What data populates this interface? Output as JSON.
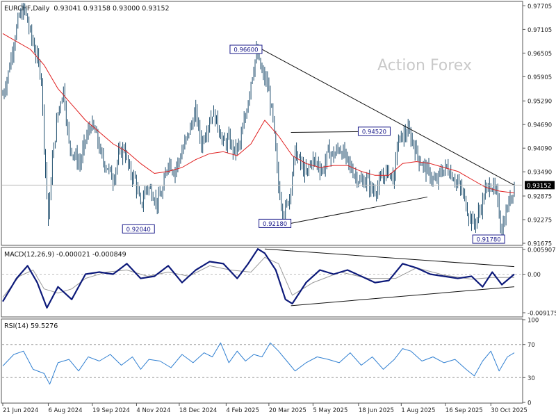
{
  "chart_data": {
    "type": "line",
    "instrument": "EURCHF,Daily",
    "ohlc": "0.93041 0.93158 0.93000 0.93152",
    "watermark": "Action Forex",
    "x_tick_labels": [
      "21 Jun 2024",
      "6 Aug 2024",
      "19 Sep 2024",
      "4 Nov 2024",
      "18 Dec 2024",
      "4 Feb 2025",
      "20 Mar 2025",
      "5 May 2025",
      "18 Jun 2025",
      "1 Aug 2025",
      "16 Sep 2025",
      "30 Oct 2025"
    ],
    "x_tick_index": [
      0,
      33,
      65,
      97,
      128,
      162,
      193,
      225,
      258,
      289,
      321,
      354
    ],
    "bars_total": 372,
    "price_panel": {
      "ylim": [
        0.9164,
        0.978
      ],
      "y_ticks": [
        0.97705,
        0.97105,
        0.96505,
        0.95905,
        0.9529,
        0.9469,
        0.9409,
        0.9349,
        0.92875,
        0.92275,
        0.91675
      ],
      "y_tick_labels": [
        "0.97705",
        "0.97105",
        "0.96505",
        "0.95905",
        "0.95290",
        "0.94690",
        "0.94090",
        "0.93490",
        "0.92875",
        "0.92275",
        "0.91675"
      ],
      "current_price": 0.93152,
      "current_price_label": "0.93152",
      "close_series": {
        "name": "EURCHF",
        "color": "#1f4e6e",
        "x_index": [
          0,
          4,
          8,
          12,
          16,
          20,
          24,
          28,
          30,
          33,
          36,
          40,
          44,
          48,
          52,
          56,
          60,
          64,
          68,
          72,
          76,
          80,
          84,
          88,
          92,
          96,
          100,
          104,
          108,
          112,
          116,
          120,
          124,
          128,
          132,
          136,
          140,
          144,
          148,
          152,
          156,
          160,
          164,
          168,
          172,
          176,
          180,
          184,
          188,
          192,
          196,
          200,
          204,
          208,
          212,
          216,
          220,
          224,
          228,
          232,
          236,
          240,
          244,
          248,
          252,
          256,
          260,
          264,
          268,
          272,
          276,
          280,
          284,
          286,
          290,
          294,
          298,
          302,
          306,
          310,
          314,
          318,
          322,
          326,
          330,
          334,
          338,
          342,
          346,
          350,
          354,
          358,
          362,
          366,
          371
        ],
        "values": [
          0.9545,
          0.96,
          0.968,
          0.9745,
          0.976,
          0.97,
          0.965,
          0.959,
          0.942,
          0.923,
          0.938,
          0.95,
          0.956,
          0.942,
          0.939,
          0.937,
          0.943,
          0.947,
          0.944,
          0.938,
          0.936,
          0.933,
          0.939,
          0.941,
          0.935,
          0.933,
          0.926,
          0.931,
          0.93,
          0.927,
          0.93,
          0.938,
          0.935,
          0.938,
          0.942,
          0.946,
          0.95,
          0.942,
          0.946,
          0.95,
          0.947,
          0.942,
          0.943,
          0.94,
          0.942,
          0.949,
          0.958,
          0.965,
          0.96,
          0.957,
          0.948,
          0.931,
          0.924,
          0.929,
          0.94,
          0.937,
          0.934,
          0.938,
          0.937,
          0.935,
          0.94,
          0.939,
          0.941,
          0.939,
          0.936,
          0.934,
          0.932,
          0.933,
          0.93,
          0.931,
          0.934,
          0.935,
          0.933,
          0.942,
          0.944,
          0.945,
          0.942,
          0.938,
          0.936,
          0.934,
          0.932,
          0.935,
          0.936,
          0.934,
          0.932,
          0.929,
          0.924,
          0.9215,
          0.925,
          0.93,
          0.932,
          0.929,
          0.92,
          0.926,
          0.9315
        ]
      },
      "ma_series": {
        "name": "MA",
        "color": "#e01e1e",
        "x_index": [
          0,
          10,
          20,
          30,
          40,
          50,
          60,
          70,
          80,
          90,
          100,
          110,
          120,
          130,
          140,
          150,
          160,
          170,
          180,
          190,
          200,
          210,
          220,
          230,
          240,
          250,
          260,
          270,
          280,
          290,
          300,
          310,
          320,
          330,
          340,
          350,
          360,
          371
        ],
        "values": [
          0.97,
          0.968,
          0.966,
          0.962,
          0.956,
          0.952,
          0.948,
          0.945,
          0.942,
          0.94,
          0.937,
          0.9345,
          0.935,
          0.936,
          0.938,
          0.9395,
          0.94,
          0.939,
          0.942,
          0.948,
          0.944,
          0.939,
          0.937,
          0.936,
          0.9365,
          0.9365,
          0.935,
          0.934,
          0.934,
          0.937,
          0.9375,
          0.937,
          0.936,
          0.935,
          0.933,
          0.931,
          0.93,
          0.9295
        ]
      },
      "trendlines": [
        {
          "x": [
            188,
            371
          ],
          "y": [
            0.966,
            0.9315
          ]
        },
        {
          "x": [
            209,
            308
          ],
          "y": [
            0.9218,
            0.9285
          ]
        },
        {
          "x": [
            209,
            281
          ],
          "y": [
            0.9449,
            0.9452
          ]
        }
      ],
      "annotations": [
        {
          "label": "0.96600",
          "x": 188,
          "y": 0.966
        },
        {
          "label": "0.94520",
          "x": 281,
          "y": 0.9452
        },
        {
          "label": "0.92040",
          "x": 110,
          "y": 0.9204
        },
        {
          "label": "0.92180",
          "x": 209,
          "y": 0.9218
        },
        {
          "label": "0.91780",
          "x": 364,
          "y": 0.9178
        }
      ]
    },
    "macd_panel": {
      "title": "MACD(12,26,9) -0.000021 -0.000849",
      "ylim": [
        -0.01,
        0.0062
      ],
      "y_ticks": [
        0.005907,
        0.0,
        -0.009175
      ],
      "y_tick_labels": [
        "0.005907",
        "0.00",
        "-0.009175"
      ],
      "macd_series": {
        "name": "MACD",
        "color": "#0d1a7a",
        "x_index": [
          0,
          10,
          18,
          25,
          32,
          40,
          50,
          60,
          70,
          80,
          90,
          100,
          110,
          120,
          130,
          140,
          150,
          160,
          170,
          178,
          185,
          190,
          198,
          205,
          210,
          220,
          230,
          240,
          250,
          260,
          270,
          280,
          290,
          300,
          310,
          320,
          330,
          340,
          348,
          355,
          362,
          371
        ],
        "values": [
          -0.0065,
          -0.001,
          0.002,
          -0.002,
          -0.008,
          -0.003,
          -0.006,
          0.0,
          0.0005,
          0.0,
          0.0025,
          -0.001,
          -0.0005,
          0.002,
          -0.002,
          0.001,
          0.003,
          0.0025,
          -0.001,
          0.0025,
          0.006,
          0.005,
          0.001,
          -0.006,
          -0.007,
          -0.002,
          0.001,
          0.0,
          0.001,
          -0.0005,
          -0.002,
          -0.0015,
          0.0025,
          0.0015,
          0.0,
          -0.0005,
          -0.001,
          -0.0005,
          -0.003,
          0.0005,
          -0.0025,
          0.0
        ]
      },
      "signal_series": {
        "name": "Signal",
        "color": "#9a9a9a",
        "x_index": [
          0,
          12,
          22,
          30,
          40,
          50,
          60,
          75,
          90,
          105,
          120,
          135,
          150,
          165,
          180,
          190,
          200,
          210,
          225,
          245,
          265,
          285,
          300,
          320,
          340,
          355,
          371
        ],
        "values": [
          -0.0055,
          -0.0005,
          0.001,
          -0.0035,
          -0.0045,
          -0.0035,
          -0.001,
          0.0005,
          0.001,
          -0.0005,
          0.0005,
          -0.0005,
          0.002,
          0.001,
          0.0005,
          0.004,
          0.0025,
          -0.005,
          -0.002,
          0.0005,
          -0.001,
          -0.001,
          0.0015,
          -0.0002,
          -0.0012,
          -0.0008,
          -0.0008
        ]
      },
      "trendlines": [
        {
          "x": [
            190,
            371
          ],
          "y": [
            0.006,
            0.0018
          ]
        },
        {
          "x": [
            209,
            371
          ],
          "y": [
            -0.0075,
            -0.003
          ]
        }
      ]
    },
    "rsi_panel": {
      "title": "RSI(14) 59.5276",
      "ylim": [
        0,
        100
      ],
      "y_ticks": [
        100,
        70,
        30,
        0
      ],
      "y_tick_labels": [
        "100",
        "70",
        "30",
        "0"
      ],
      "levels": [
        70,
        30
      ],
      "rsi_series": {
        "name": "RSI",
        "color": "#2f7fd1",
        "x_index": [
          0,
          8,
          15,
          22,
          30,
          34,
          40,
          48,
          55,
          62,
          70,
          78,
          86,
          94,
          100,
          106,
          114,
          122,
          130,
          138,
          146,
          152,
          158,
          164,
          170,
          176,
          182,
          188,
          194,
          200,
          206,
          212,
          220,
          228,
          236,
          244,
          252,
          260,
          268,
          276,
          284,
          290,
          296,
          304,
          312,
          320,
          328,
          336,
          342,
          348,
          354,
          360,
          366,
          371
        ],
        "values": [
          44,
          58,
          62,
          40,
          35,
          22,
          48,
          52,
          38,
          55,
          50,
          58,
          45,
          55,
          40,
          52,
          50,
          42,
          58,
          48,
          60,
          55,
          72,
          48,
          62,
          50,
          58,
          55,
          72,
          62,
          50,
          38,
          48,
          55,
          52,
          48,
          60,
          45,
          55,
          40,
          52,
          65,
          62,
          50,
          55,
          48,
          52,
          40,
          32,
          50,
          62,
          38,
          55,
          60
        ]
      }
    }
  }
}
